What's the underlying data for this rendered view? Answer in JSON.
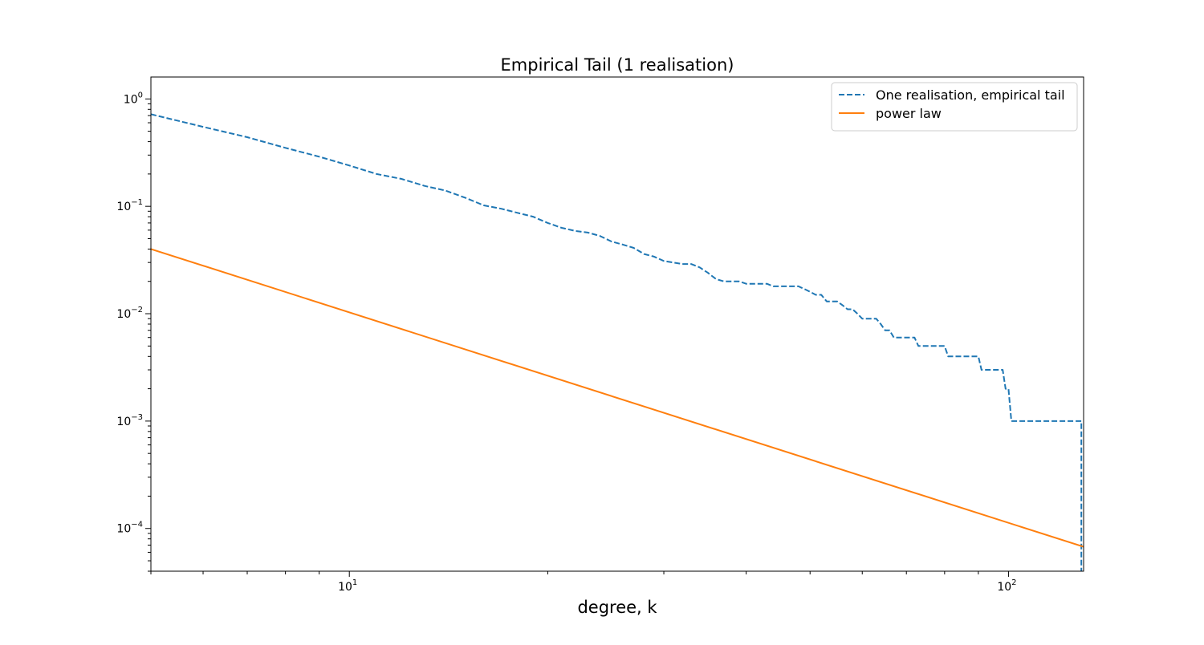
{
  "chart_data": {
    "type": "line",
    "title": "Empirical Tail (1 realisation)",
    "xlabel": "degree, k",
    "ylabel": "",
    "xscale": "log",
    "yscale": "log",
    "xlim": [
      5,
      130
    ],
    "ylim": [
      4e-05,
      1.6
    ],
    "grid": false,
    "legend_position": "top-right",
    "x_ticks": [
      {
        "value": 10,
        "base": "10",
        "exp": "1"
      },
      {
        "value": 100,
        "base": "10",
        "exp": "2"
      }
    ],
    "y_ticks": [
      {
        "value": 1,
        "base": "10",
        "exp": "0"
      },
      {
        "value": 0.1,
        "base": "10",
        "exp": "−1"
      },
      {
        "value": 0.01,
        "base": "10",
        "exp": "−2"
      },
      {
        "value": 0.001,
        "base": "10",
        "exp": "−3"
      },
      {
        "value": 0.0001,
        "base": "10",
        "exp": "−4"
      }
    ],
    "series": [
      {
        "name": "One realisation, empirical tail",
        "color": "#1f77b4",
        "style": "dashed",
        "points": [
          [
            5.0,
            0.72
          ],
          [
            6.0,
            0.55
          ],
          [
            7.0,
            0.44
          ],
          [
            8.0,
            0.35
          ],
          [
            9.0,
            0.29
          ],
          [
            10.0,
            0.24
          ],
          [
            11.0,
            0.2
          ],
          [
            12.0,
            0.18
          ],
          [
            13.0,
            0.155
          ],
          [
            14.0,
            0.14
          ],
          [
            15.0,
            0.12
          ],
          [
            16.0,
            0.102
          ],
          [
            17.0,
            0.095
          ],
          [
            18.0,
            0.087
          ],
          [
            19.0,
            0.08
          ],
          [
            20.0,
            0.07
          ],
          [
            21.0,
            0.063
          ],
          [
            22.0,
            0.059
          ],
          [
            23.0,
            0.057
          ],
          [
            24.0,
            0.053
          ],
          [
            25.0,
            0.047
          ],
          [
            26.0,
            0.044
          ],
          [
            27.0,
            0.041
          ],
          [
            28.0,
            0.036
          ],
          [
            29.0,
            0.034
          ],
          [
            30.0,
            0.031
          ],
          [
            31.0,
            0.03
          ],
          [
            32.0,
            0.029
          ],
          [
            33.0,
            0.029
          ],
          [
            34.0,
            0.027
          ],
          [
            35.0,
            0.024
          ],
          [
            36.0,
            0.021
          ],
          [
            37.0,
            0.02
          ],
          [
            38.0,
            0.02
          ],
          [
            39.0,
            0.02
          ],
          [
            40.0,
            0.019
          ],
          [
            41.0,
            0.019
          ],
          [
            42.0,
            0.019
          ],
          [
            43.0,
            0.019
          ],
          [
            44.0,
            0.018
          ],
          [
            45.0,
            0.018
          ],
          [
            46.0,
            0.018
          ],
          [
            47.0,
            0.018
          ],
          [
            48.0,
            0.018
          ],
          [
            49.0,
            0.017
          ],
          [
            50.0,
            0.016
          ],
          [
            51.0,
            0.015
          ],
          [
            52.0,
            0.015
          ],
          [
            53.0,
            0.013
          ],
          [
            54.0,
            0.013
          ],
          [
            55.0,
            0.013
          ],
          [
            56.0,
            0.012
          ],
          [
            57.0,
            0.011
          ],
          [
            58.0,
            0.011
          ],
          [
            59.0,
            0.01
          ],
          [
            60.0,
            0.009
          ],
          [
            61.0,
            0.009
          ],
          [
            62.0,
            0.009
          ],
          [
            63.0,
            0.009
          ],
          [
            64.0,
            0.008
          ],
          [
            65.0,
            0.007
          ],
          [
            66.0,
            0.007
          ],
          [
            67.0,
            0.006
          ],
          [
            68.0,
            0.006
          ],
          [
            70.0,
            0.006
          ],
          [
            72.0,
            0.006
          ],
          [
            73.0,
            0.005
          ],
          [
            75.0,
            0.005
          ],
          [
            78.0,
            0.005
          ],
          [
            80.0,
            0.005
          ],
          [
            81.0,
            0.004
          ],
          [
            84.0,
            0.004
          ],
          [
            87.0,
            0.004
          ],
          [
            90.0,
            0.004
          ],
          [
            91.0,
            0.003
          ],
          [
            95.0,
            0.003
          ],
          [
            98.0,
            0.003
          ],
          [
            99.0,
            0.002
          ],
          [
            100.0,
            0.002
          ],
          [
            101.0,
            0.001
          ],
          [
            110.0,
            0.001
          ],
          [
            120.0,
            0.001
          ],
          [
            129.0,
            0.001
          ],
          [
            129.0,
            4e-05
          ]
        ]
      },
      {
        "name": "power law",
        "color": "#ff7f0e",
        "style": "solid",
        "points": [
          [
            5,
            0.04
          ],
          [
            130,
            6.75e-05
          ]
        ]
      }
    ]
  }
}
